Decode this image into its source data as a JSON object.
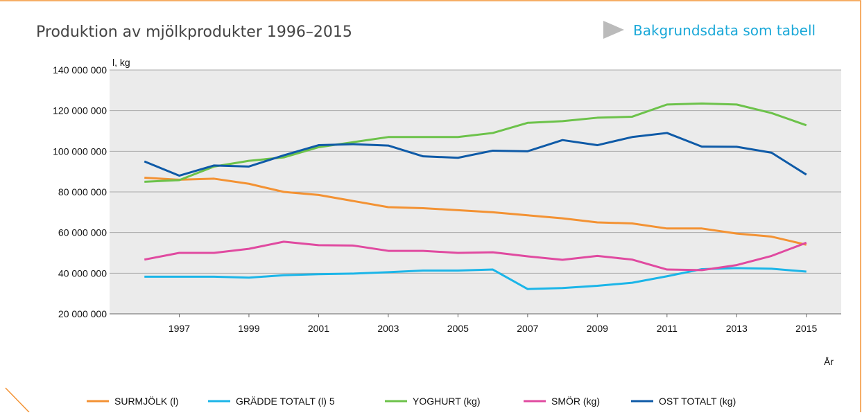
{
  "chart_data": {
    "type": "line",
    "title": "Produktion av mjölkprodukter 1996–2015",
    "link": "Bakgrundsdata som tabell",
    "y_label": "l, kg",
    "x_label": "År",
    "x": [
      1996,
      1997,
      1998,
      1999,
      2000,
      2001,
      2002,
      2003,
      2004,
      2005,
      2006,
      2007,
      2008,
      2009,
      2010,
      2011,
      2012,
      2013,
      2014,
      2015
    ],
    "xlim": [
      1995,
      2016
    ],
    "xticks": [
      1997,
      1999,
      2001,
      2003,
      2005,
      2007,
      2009,
      2011,
      2013,
      2015
    ],
    "ylim": [
      20000000,
      140000000
    ],
    "yticks": [
      {
        "value": 20000000,
        "label": "20 000 000"
      },
      {
        "value": 40000000,
        "label": "40 000 000"
      },
      {
        "value": 60000000,
        "label": "60 000 000"
      },
      {
        "value": 80000000,
        "label": "80 000 000"
      },
      {
        "value": 100000000,
        "label": "100 000 000"
      },
      {
        "value": 120000000,
        "label": "120 000 000"
      },
      {
        "value": 140000000,
        "label": "140 000 000"
      }
    ],
    "grid": true,
    "series": [
      {
        "name": "SURMJÖLK (l)",
        "color": "#f39233",
        "values": [
          87000000,
          86000000,
          86500000,
          84000000,
          80000000,
          78500000,
          75500000,
          72500000,
          72000000,
          71000000,
          70000000,
          68500000,
          67000000,
          65000000,
          64500000,
          62000000,
          62000000,
          59500000,
          58000000,
          54000000
        ]
      },
      {
        "name": "GRÄDDE TOTALT (l) 5",
        "color": "#1bb5e8",
        "values": [
          38300000,
          38300000,
          38300000,
          37800000,
          39000000,
          39500000,
          39800000,
          40500000,
          41300000,
          41300000,
          41800000,
          32200000,
          32700000,
          33800000,
          35300000,
          38500000,
          42000000,
          42500000,
          42200000,
          40800000
        ]
      },
      {
        "name": "YOGHURT (kg)",
        "color": "#6cc24a",
        "values": [
          85000000,
          85800000,
          92500000,
          95300000,
          97000000,
          102000000,
          104500000,
          107000000,
          107000000,
          107000000,
          109000000,
          114000000,
          114800000,
          116500000,
          117000000,
          123000000,
          123500000,
          123000000,
          118800000,
          112800000
        ]
      },
      {
        "name": "SMÖR (kg)",
        "color": "#e04aa0",
        "values": [
          46700000,
          50000000,
          50000000,
          52000000,
          55500000,
          53800000,
          53600000,
          51000000,
          51000000,
          50000000,
          50300000,
          48300000,
          46600000,
          48500000,
          46700000,
          41800000,
          41500000,
          44000000,
          48500000,
          55000000
        ]
      },
      {
        "name": "OST TOTALT (kg)",
        "color": "#0e5aa7",
        "values": [
          95000000,
          88000000,
          93000000,
          92500000,
          98000000,
          103000000,
          103500000,
          102800000,
          97500000,
          96800000,
          100300000,
          100000000,
          105500000,
          103000000,
          107000000,
          109000000,
          102300000,
          102200000,
          99300000,
          88500000
        ]
      }
    ]
  }
}
